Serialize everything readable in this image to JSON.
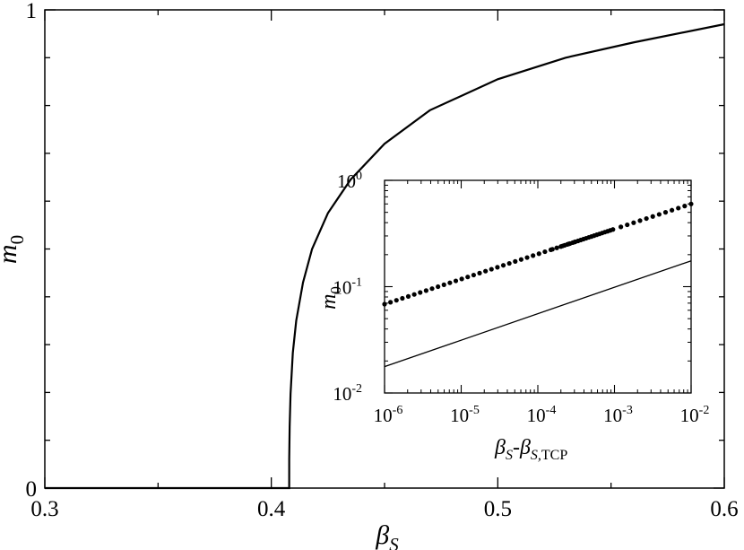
{
  "chart_data": [
    {
      "type": "line",
      "xlabel": {
        "base": "β",
        "sub": "S"
      },
      "ylabel": {
        "base": "m",
        "sub": "0"
      },
      "xlim": [
        0.3,
        0.6
      ],
      "ylim": [
        0,
        1
      ],
      "x_ticks": [
        0.3,
        0.4,
        0.5,
        0.6
      ],
      "x_tick_labels": [
        "0.3",
        "0.4",
        "0.5",
        "0.6"
      ],
      "y_ticks": [
        0,
        1
      ],
      "y_tick_labels": [
        "0",
        "1"
      ],
      "grid": false,
      "series": [
        {
          "x": [
            0.3,
            0.35,
            0.4,
            0.4079,
            0.40791,
            0.4081,
            0.4085,
            0.4095,
            0.411,
            0.414,
            0.418,
            0.425,
            0.435,
            0.45,
            0.47,
            0.5,
            0.53,
            0.56,
            0.6
          ],
          "y": [
            0,
            0,
            0,
            0,
            0.061,
            0.128,
            0.197,
            0.283,
            0.35,
            0.43,
            0.5,
            0.575,
            0.645,
            0.72,
            0.79,
            0.855,
            0.9,
            0.932,
            0.97
          ]
        }
      ]
    },
    {
      "type": "scatter",
      "scale": "log-log",
      "xlabel": {
        "base": "β",
        "sub1": "S",
        "sep": "-",
        "base2": "β",
        "sub2": "S,",
        "sub2b": "TCP"
      },
      "ylabel": {
        "base": "m",
        "sub": "0"
      },
      "xlim": [
        1e-06,
        0.01
      ],
      "ylim": [
        0.01,
        1
      ],
      "x_ticks": [
        1e-06,
        1e-05,
        0.0001,
        0.001,
        0.01
      ],
      "x_tick_labels": [
        {
          "base": "10",
          "exp": "-6"
        },
        {
          "base": "10",
          "exp": "-5"
        },
        {
          "base": "10",
          "exp": "-4"
        },
        {
          "base": "10",
          "exp": "-3"
        },
        {
          "base": "10",
          "exp": "-2"
        }
      ],
      "y_ticks": [
        0.01,
        0.1,
        1
      ],
      "y_tick_labels": [
        {
          "base": "10",
          "exp": "-2"
        },
        {
          "base": "10",
          "exp": "-1"
        },
        {
          "base": "10",
          "exp": "0"
        }
      ],
      "grid": false,
      "series": [
        {
          "style": "points",
          "law": {
            "a": 0.6,
            "slope": 0.2357
          }
        },
        {
          "style": "line",
          "x": [
            1e-06,
            0.01
          ],
          "y": [
            0.0177,
            0.175
          ]
        }
      ]
    }
  ]
}
